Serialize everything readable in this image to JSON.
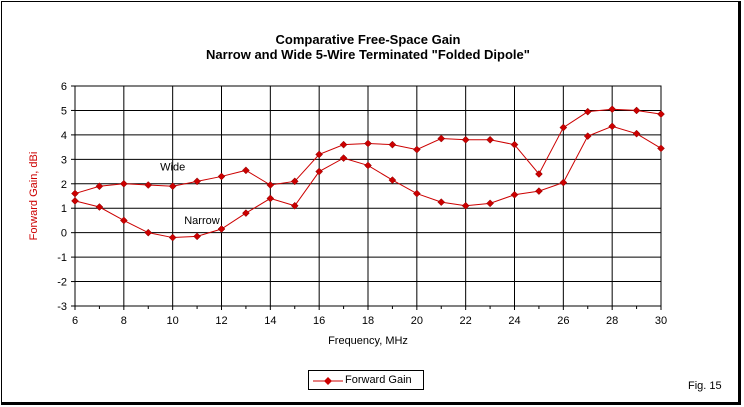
{
  "chart_data": {
    "type": "line",
    "title": [
      "Comparative Free-Space Gain",
      "Narrow and Wide 5-Wire Terminated \"Folded Dipole\""
    ],
    "xlabel": "Frequency, MHz",
    "ylabel": "Forward Gain,  dBi",
    "xlim": [
      6,
      30
    ],
    "ylim": [
      -3,
      6
    ],
    "x_ticks": [
      "6",
      "8",
      "10",
      "12",
      "14",
      "16",
      "18",
      "20",
      "22",
      "24",
      "26",
      "28",
      "30"
    ],
    "y_ticks": [
      "6",
      "5",
      "4",
      "3",
      "2",
      "1",
      "0",
      "-1",
      "-2",
      "-3"
    ],
    "grid": true,
    "legend_position": "bottom-center",
    "series": [
      {
        "name": "Forward Gain",
        "color": "#cc0000",
        "marker": "diamond",
        "x": [
          6,
          7,
          8,
          9,
          10,
          11,
          12,
          13,
          14,
          15,
          16,
          17,
          18,
          19,
          20,
          21,
          22,
          23,
          24,
          25,
          26,
          27,
          28,
          29,
          30
        ],
        "values": [
          1.6,
          1.9,
          2.0,
          1.95,
          1.9,
          2.1,
          2.3,
          2.55,
          1.95,
          2.1,
          3.2,
          3.6,
          3.65,
          3.6,
          3.4,
          3.85,
          3.8,
          3.8,
          3.6,
          2.4,
          4.3,
          4.95,
          5.05,
          5.0,
          4.85
        ]
      },
      {
        "name": "",
        "color": "#cc0000",
        "marker": "diamond",
        "x": [
          6,
          7,
          8,
          9,
          10,
          11,
          12,
          13,
          14,
          15,
          16,
          17,
          18,
          19,
          20,
          21,
          22,
          23,
          24,
          25,
          26,
          27,
          28,
          29,
          30
        ],
        "values": [
          1.3,
          1.05,
          0.5,
          0.0,
          -0.2,
          -0.15,
          0.15,
          0.8,
          1.4,
          1.1,
          2.5,
          3.05,
          2.75,
          2.15,
          1.6,
          1.25,
          1.1,
          1.2,
          1.55,
          1.7,
          2.05,
          3.95,
          4.35,
          4.05,
          3.45
        ]
      }
    ],
    "annotations": [
      {
        "text": "Wide",
        "x": 10.0,
        "y": 2.55
      },
      {
        "text": "Narrow",
        "x": 11.2,
        "y": 0.35
      }
    ]
  },
  "legend": {
    "label": "Forward Gain"
  },
  "figure_label": "Fig. 15"
}
